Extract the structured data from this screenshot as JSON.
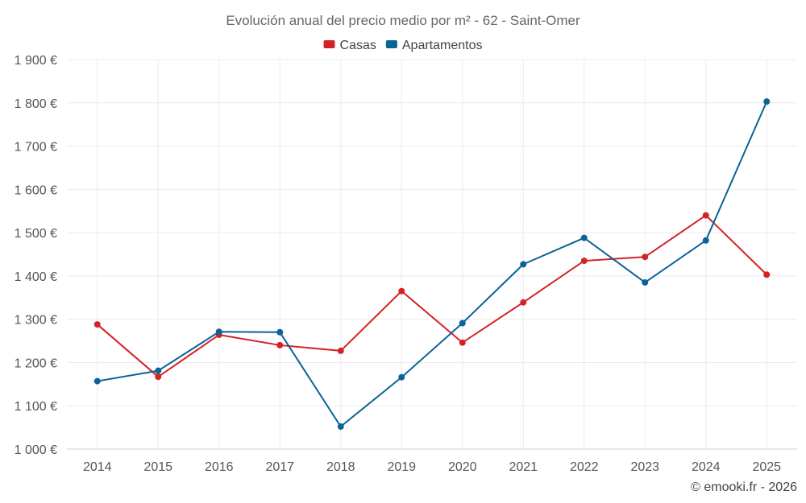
{
  "chart_data": {
    "type": "line",
    "title": "Evolución anual del precio medio por m² - 62 - Saint-Omer",
    "x": [
      "2014",
      "2015",
      "2016",
      "2017",
      "2018",
      "2019",
      "2020",
      "2021",
      "2022",
      "2023",
      "2024",
      "2025"
    ],
    "series": [
      {
        "name": "Casas",
        "color": "#d32228",
        "values": [
          1288,
          1167,
          1264,
          1240,
          1227,
          1365,
          1246,
          1339,
          1435,
          1444,
          1540,
          1403
        ]
      },
      {
        "name": "Apartamentos",
        "color": "#0b6396",
        "values": [
          1157,
          1181,
          1271,
          1270,
          1052,
          1166,
          1291,
          1427,
          1488,
          1385,
          1482,
          1803
        ]
      }
    ],
    "ylim": [
      1000,
      1900
    ],
    "yticks": [
      1000,
      1100,
      1200,
      1300,
      1400,
      1500,
      1600,
      1700,
      1800,
      1900
    ],
    "ytick_labels": [
      "1 000 €",
      "1 100 €",
      "1 200 €",
      "1 300 €",
      "1 400 €",
      "1 500 €",
      "1 600 €",
      "1 700 €",
      "1 800 €",
      "1 900 €"
    ],
    "xlabel": "",
    "ylabel": "",
    "grid": true,
    "legend": "top-center"
  },
  "credit": "© emooki.fr - 2026"
}
